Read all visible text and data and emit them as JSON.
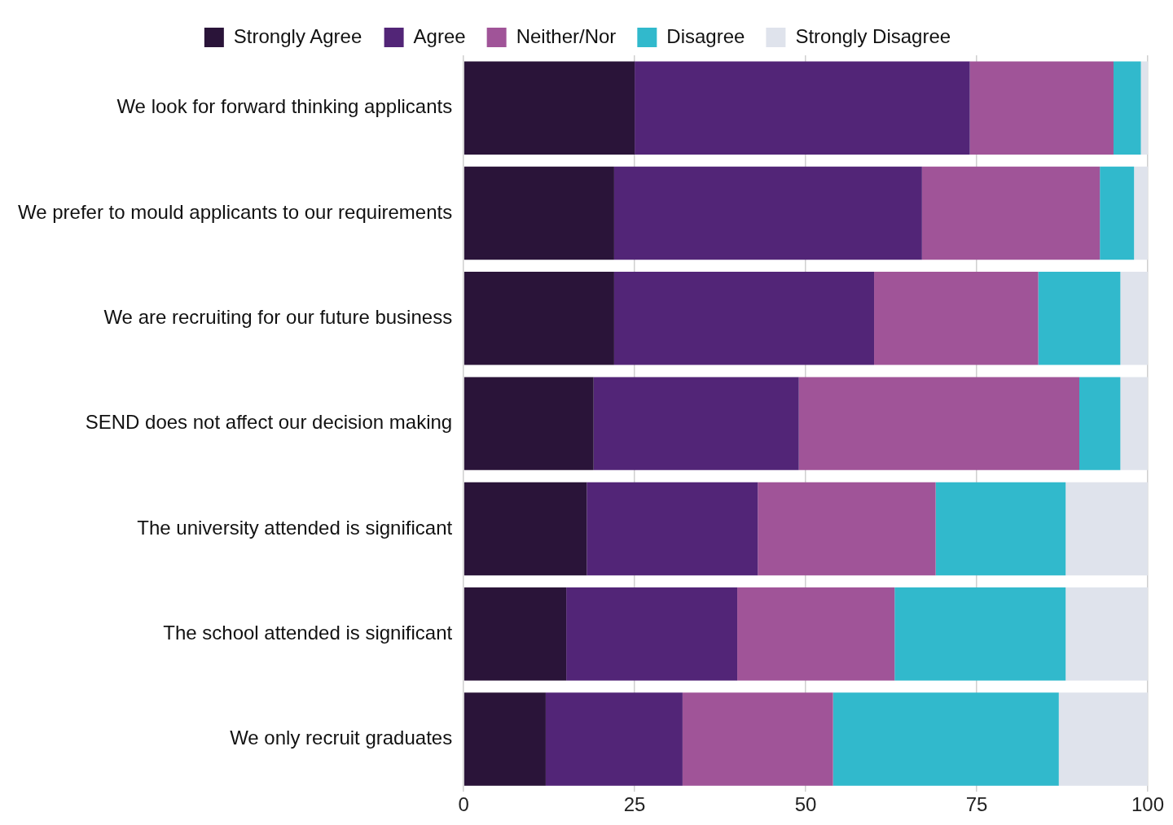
{
  "chart_data": {
    "type": "bar",
    "orientation": "horizontal",
    "stacked": true,
    "categories": [
      "We look for forward thinking applicants",
      "We prefer to mould applicants to our requirements",
      "We are recruiting for our future business",
      "SEND does not affect our decision making",
      "The university attended is significant",
      "The school attended is significant",
      "We only recruit graduates"
    ],
    "series": [
      {
        "name": "Strongly Agree",
        "color": "#2a1439",
        "values": [
          25,
          22,
          22,
          19,
          18,
          15,
          12
        ]
      },
      {
        "name": "Agree",
        "color": "#522577",
        "values": [
          49,
          45,
          38,
          30,
          25,
          25,
          20
        ]
      },
      {
        "name": "Neither/Nor",
        "color": "#a05498",
        "values": [
          21,
          26,
          24,
          41,
          26,
          23,
          22
        ]
      },
      {
        "name": "Disagree",
        "color": "#31b9cc",
        "values": [
          4,
          5,
          12,
          6,
          19,
          25,
          33
        ]
      },
      {
        "name": "Strongly Disagree",
        "color": "#dfe3ec",
        "values": [
          1,
          2,
          4,
          4,
          12,
          12,
          13
        ]
      }
    ],
    "xlim": [
      0,
      100
    ],
    "xticks": [
      0,
      25,
      50,
      75,
      100
    ],
    "grid": "x",
    "legend": "top"
  }
}
